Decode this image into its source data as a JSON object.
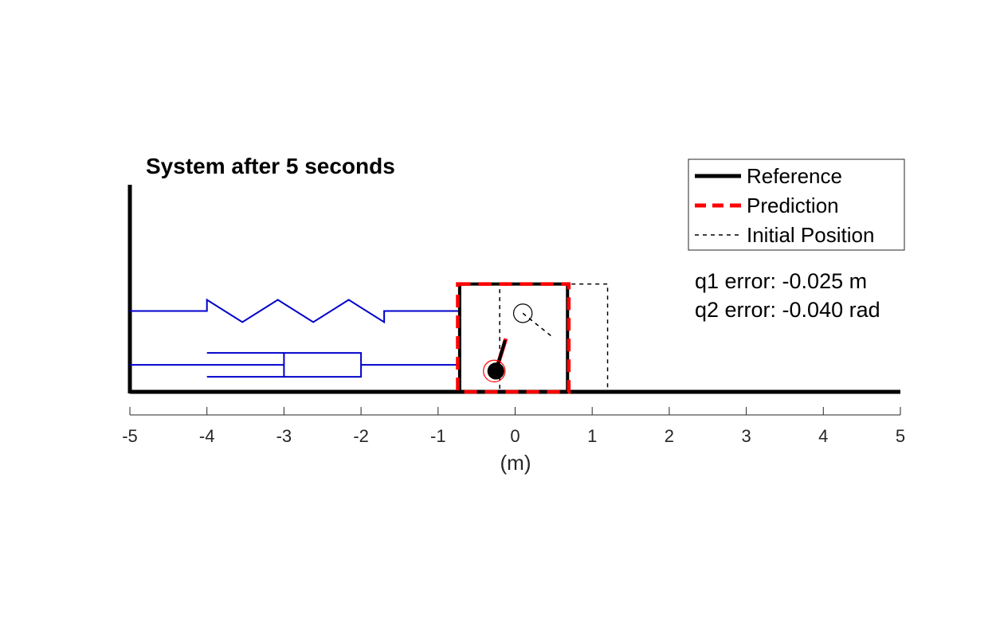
{
  "chart_data": {
    "type": "diagram",
    "title": "System after 5 seconds",
    "xlabel": "(m)",
    "xlim": [
      -5,
      5
    ],
    "xticks": [
      -5,
      -4,
      -3,
      -2,
      -1,
      0,
      1,
      2,
      3,
      4,
      5
    ],
    "xtick_labels": [
      "-5",
      "-4",
      "-3",
      "-2",
      "-1",
      "0",
      "1",
      "2",
      "3",
      "4",
      "5"
    ],
    "grid": false,
    "legend": {
      "placement": "top-right",
      "entries": [
        {
          "label": "Reference",
          "style": "solid-thick",
          "color": "#000000"
        },
        {
          "label": "Prediction",
          "style": "dashed-thick",
          "color": "#ff0000"
        },
        {
          "label": "Initial Position",
          "style": "dashed-thin",
          "color": "#000000"
        }
      ]
    },
    "annotations": [
      "q1 error: -0.025 m",
      "q2 error: -0.040 rad"
    ],
    "colors": {
      "spring_damper": "#0000cc",
      "reference": "#000000",
      "prediction": "#ff0000",
      "initial": "#000000"
    },
    "system": {
      "wall_x": -5,
      "cart_width": 1.4,
      "cart_height": 1.4,
      "reference_cart_left": -0.72,
      "prediction_cart_left": -0.745,
      "initial_cart_left": -0.2,
      "spring_y": 1.05,
      "damper_y": 0.35,
      "reference_pivot": [
        -0.25,
        0.27
      ],
      "reference_bob": [
        -0.13,
        0.67
      ],
      "prediction_bob": [
        -0.12,
        0.69
      ],
      "initial_pivot": [
        0.1,
        1.02
      ],
      "initial_bob": [
        0.5,
        0.7
      ],
      "bob_radius": 0.12
    }
  }
}
